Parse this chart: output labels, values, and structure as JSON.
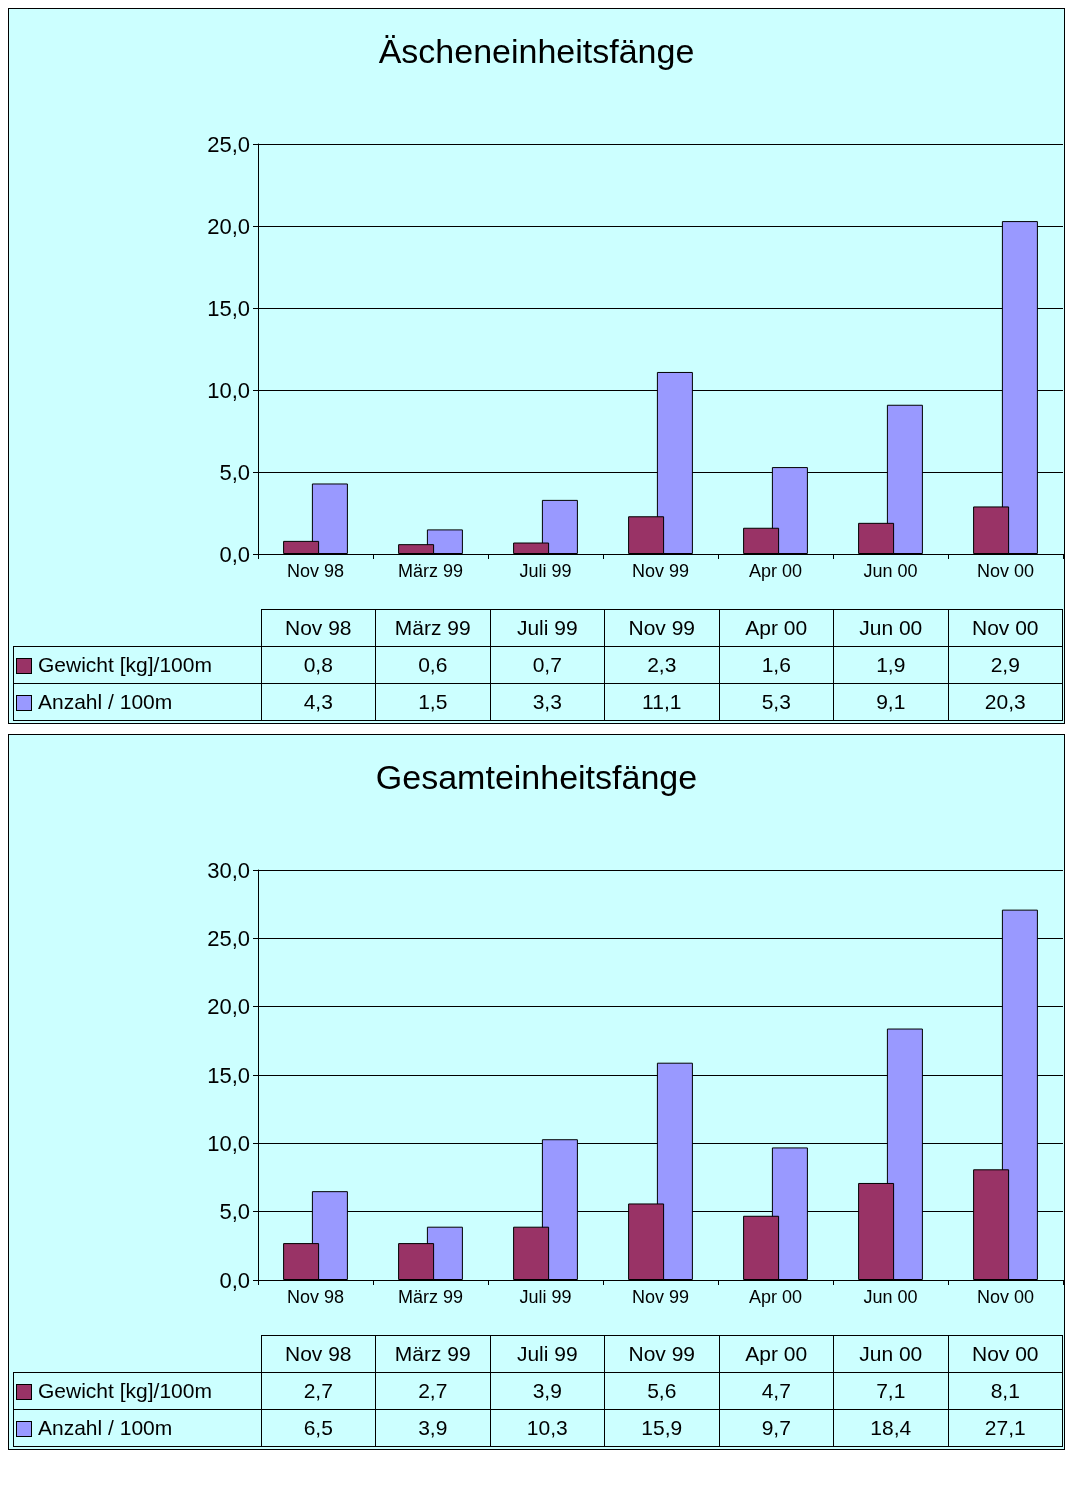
{
  "chart_data": [
    {
      "type": "bar",
      "title": "Äscheneinheitsfänge",
      "categories": [
        "Nov 98",
        "März 99",
        "Juli 99",
        "Nov 99",
        "Apr 00",
        "Jun 00",
        "Nov 00"
      ],
      "series": [
        {
          "name": "Gewicht [kg]/100m",
          "color": "#993366",
          "values": [
            0.8,
            0.6,
            0.7,
            2.3,
            1.6,
            1.9,
            2.9
          ],
          "value_labels": [
            "0,8",
            "0,6",
            "0,7",
            "2,3",
            "1,6",
            "1,9",
            "2,9"
          ]
        },
        {
          "name": "Anzahl / 100m",
          "color": "#9999ff",
          "values": [
            4.3,
            1.5,
            3.3,
            11.1,
            5.3,
            9.1,
            20.3
          ],
          "value_labels": [
            "4,3",
            "1,5",
            "3,3",
            "11,1",
            "5,3",
            "9,1",
            "20,3"
          ]
        }
      ],
      "ylim": [
        0,
        25
      ],
      "yticks": [
        {
          "value": 0,
          "label": "0,0"
        },
        {
          "value": 5,
          "label": "5,0"
        },
        {
          "value": 10,
          "label": "10,0"
        },
        {
          "value": 15,
          "label": "15,0"
        },
        {
          "value": 20,
          "label": "20,0"
        },
        {
          "value": 25,
          "label": "25,0"
        }
      ],
      "grid": "y",
      "legend": "bottom left"
    },
    {
      "type": "bar",
      "title": "Gesamteinheitsfänge",
      "categories": [
        "Nov 98",
        "März 99",
        "Juli 99",
        "Nov 99",
        "Apr 00",
        "Jun 00",
        "Nov 00"
      ],
      "series": [
        {
          "name": "Gewicht [kg]/100m",
          "color": "#993366",
          "values": [
            2.7,
            2.7,
            3.9,
            5.6,
            4.7,
            7.1,
            8.1
          ],
          "value_labels": [
            "2,7",
            "2,7",
            "3,9",
            "5,6",
            "4,7",
            "7,1",
            "8,1"
          ]
        },
        {
          "name": "Anzahl / 100m",
          "color": "#9999ff",
          "values": [
            6.5,
            3.9,
            10.3,
            15.9,
            9.7,
            18.4,
            27.1
          ],
          "value_labels": [
            "6,5",
            "3,9",
            "10,3",
            "15,9",
            "9,7",
            "18,4",
            "27,1"
          ]
        }
      ],
      "ylim": [
        0,
        30
      ],
      "yticks": [
        {
          "value": 0,
          "label": "0,0"
        },
        {
          "value": 5,
          "label": "5,0"
        },
        {
          "value": 10,
          "label": "10,0"
        },
        {
          "value": 15,
          "label": "15,0"
        },
        {
          "value": 20,
          "label": "20,0"
        },
        {
          "value": 25,
          "label": "25,0"
        },
        {
          "value": 30,
          "label": "30,0"
        }
      ],
      "grid": "y",
      "legend": "bottom left"
    }
  ]
}
